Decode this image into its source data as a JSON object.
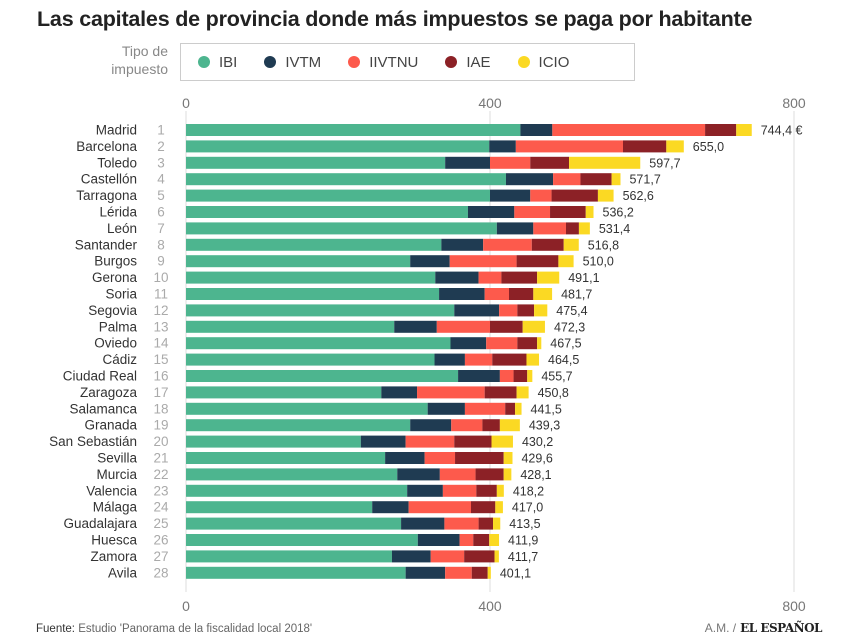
{
  "chart_data": {
    "type": "bar",
    "orientation": "horizontal",
    "stacked": true,
    "title": "Las capitales de provincia donde más impuestos se paga por habitante",
    "legend_title": "Tipo de impuesto",
    "legend_placement": "top",
    "xlim": [
      0,
      800
    ],
    "xticks": [
      "0",
      "400",
      "800"
    ],
    "grid": true,
    "series": [
      {
        "name": "IBI",
        "color": "#4db58f",
        "values": [
          440,
          399,
          341,
          421,
          400,
          371,
          409,
          336,
          295,
          328,
          333,
          353,
          274,
          348,
          327,
          358,
          257,
          318,
          295,
          230,
          262,
          278,
          291,
          245,
          283,
          305,
          271,
          289
        ]
      },
      {
        "name": "IVTM",
        "color": "#1f3b52",
        "values": [
          42,
          35,
          59,
          62,
          53,
          61,
          48,
          55,
          52,
          57,
          60,
          59,
          56,
          47,
          40,
          55,
          47,
          49,
          54,
          59,
          52,
          56,
          47,
          48,
          57,
          55,
          51,
          52
        ]
      },
      {
        "name": "IIVTNU",
        "color": "#fd5a4c",
        "values": [
          201,
          141,
          53,
          36,
          28,
          47,
          43,
          64,
          88,
          30,
          32,
          24,
          70,
          41,
          36,
          18,
          89,
          53,
          41,
          64,
          40,
          47,
          44,
          82,
          45,
          18,
          44,
          35
        ]
      },
      {
        "name": "IAE",
        "color": "#8c2126",
        "values": [
          41,
          57,
          51,
          41,
          61,
          47,
          17,
          42,
          55,
          47,
          32,
          22,
          43,
          26,
          45,
          18,
          42,
          13,
          23,
          49,
          64,
          37,
          27,
          32,
          19,
          21,
          40,
          21
        ]
      },
      {
        "name": "ICIO",
        "color": "#fbd923",
        "values": [
          20.4,
          23,
          93.7,
          11.7,
          20.6,
          10.2,
          14.4,
          19.8,
          20,
          29.1,
          24.7,
          17.4,
          29.3,
          5.5,
          16.5,
          6.7,
          15.8,
          8.5,
          26.3,
          28.2,
          11.6,
          10.1,
          9.2,
          10,
          9.5,
          12.9,
          5.7,
          4.1
        ]
      }
    ],
    "rows": [
      {
        "city": "Madrid",
        "rank": "1",
        "total": 744.4,
        "label": "744,4 €"
      },
      {
        "city": "Barcelona",
        "rank": "2",
        "total": 655.0,
        "label": "655,0"
      },
      {
        "city": "Toledo",
        "rank": "3",
        "total": 597.7,
        "label": "597,7"
      },
      {
        "city": "Castellón",
        "rank": "4",
        "total": 571.7,
        "label": "571,7"
      },
      {
        "city": "Tarragona",
        "rank": "5",
        "total": 562.6,
        "label": "562,6"
      },
      {
        "city": "Lérida",
        "rank": "6",
        "total": 536.2,
        "label": "536,2"
      },
      {
        "city": "León",
        "rank": "7",
        "total": 531.4,
        "label": "531,4"
      },
      {
        "city": "Santander",
        "rank": "8",
        "total": 516.8,
        "label": "516,8"
      },
      {
        "city": "Burgos",
        "rank": "9",
        "total": 510.0,
        "label": "510,0"
      },
      {
        "city": "Gerona",
        "rank": "10",
        "total": 491.1,
        "label": "491,1"
      },
      {
        "city": "Soria",
        "rank": "11",
        "total": 481.7,
        "label": "481,7"
      },
      {
        "city": "Segovia",
        "rank": "12",
        "total": 475.4,
        "label": "475,4"
      },
      {
        "city": "Palma",
        "rank": "13",
        "total": 472.3,
        "label": "472,3"
      },
      {
        "city": "Oviedo",
        "rank": "14",
        "total": 467.5,
        "label": "467,5"
      },
      {
        "city": "Cádiz",
        "rank": "15",
        "total": 464.5,
        "label": "464,5"
      },
      {
        "city": "Ciudad Real",
        "rank": "16",
        "total": 455.7,
        "label": "455,7"
      },
      {
        "city": "Zaragoza",
        "rank": "17",
        "total": 450.8,
        "label": "450,8"
      },
      {
        "city": "Salamanca",
        "rank": "18",
        "total": 441.5,
        "label": "441,5"
      },
      {
        "city": "Granada",
        "rank": "19",
        "total": 439.3,
        "label": "439,3"
      },
      {
        "city": "San Sebastián",
        "rank": "20",
        "total": 430.2,
        "label": "430,2"
      },
      {
        "city": "Sevilla",
        "rank": "21",
        "total": 429.6,
        "label": "429,6"
      },
      {
        "city": "Murcia",
        "rank": "22",
        "total": 428.1,
        "label": "428,1"
      },
      {
        "city": "Valencia",
        "rank": "23",
        "total": 418.2,
        "label": "418,2"
      },
      {
        "city": "Málaga",
        "rank": "24",
        "total": 417.0,
        "label": "417,0"
      },
      {
        "city": "Guadalajara",
        "rank": "25",
        "total": 413.5,
        "label": "413,5"
      },
      {
        "city": "Huesca",
        "rank": "26",
        "total": 411.9,
        "label": "411,9"
      },
      {
        "city": "Zamora",
        "rank": "27",
        "total": 411.7,
        "label": "411,7"
      },
      {
        "city": "Avila",
        "rank": "28",
        "total": 401.1,
        "label": "401,1"
      }
    ]
  },
  "footer": {
    "source_label": "Fuente:",
    "source_text": "Estudio 'Panorama de la fiscalidad local 2018'",
    "author": "A.M. /",
    "logo": "EL ESPAÑOL"
  }
}
